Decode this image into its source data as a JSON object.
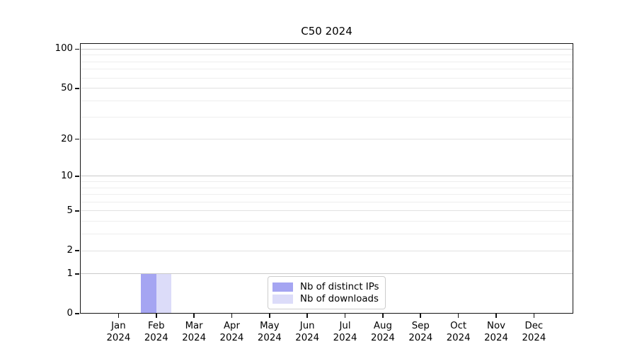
{
  "chart_data": {
    "type": "bar",
    "title": "C50 2024",
    "categories": [
      "Jan",
      "Feb",
      "Mar",
      "Apr",
      "May",
      "Jun",
      "Jul",
      "Aug",
      "Sep",
      "Oct",
      "Nov",
      "Dec"
    ],
    "year_label": "2024",
    "series": [
      {
        "name": "Nb of distinct IPs",
        "color": "#a5a5f2",
        "values": [
          0,
          1,
          0,
          0,
          0,
          0,
          0,
          0,
          0,
          0,
          0,
          0
        ]
      },
      {
        "name": "Nb of downloads",
        "color": "#dcdcf9",
        "values": [
          0,
          1,
          0,
          0,
          0,
          0,
          0,
          0,
          0,
          0,
          0,
          0
        ]
      }
    ],
    "xlabel": "",
    "ylabel": "",
    "yscale": "log1p",
    "ylim": [
      0,
      111
    ],
    "ytick_values": [
      0,
      1,
      2,
      5,
      10,
      20,
      50,
      100
    ],
    "ytick_labels": [
      "0",
      "1",
      "2",
      "5",
      "10",
      "20",
      "50",
      "100"
    ],
    "ytick_minor_values": [
      3,
      4,
      6,
      7,
      8,
      9,
      30,
      40,
      60,
      70,
      80,
      90
    ],
    "grid": "on",
    "legend_position": "lower center"
  },
  "colors": {
    "grid_major": "#c9c9c9",
    "grid_mid": "#e1e1e1",
    "grid_minor": "#eeeeee",
    "spine": "#141414",
    "background": "#ffffff"
  }
}
